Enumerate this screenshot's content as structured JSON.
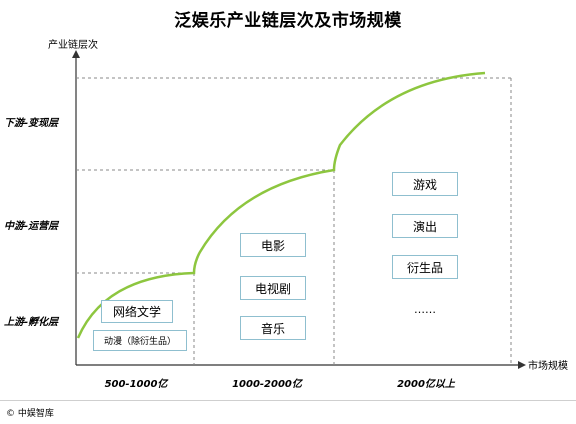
{
  "title": "泛娱乐产业链层次及市场规模",
  "y_axis_label": "产业链层次",
  "x_axis_label": "市场规模",
  "tiers": [
    "下游-变现层",
    "中游-运营层",
    "上游-孵化层"
  ],
  "scale_ranges": [
    "500-1000亿",
    "1000-2000亿",
    "2000亿以上"
  ],
  "segments": {
    "seg1": [
      "网络文学",
      "动漫（除衍生品）"
    ],
    "seg2": [
      "电影",
      "电视剧",
      "音乐"
    ],
    "seg3": [
      "游戏",
      "演出",
      "衍生品",
      "……"
    ]
  },
  "copyright": "© 中娱智库",
  "colors": {
    "curve": "#8dc63f",
    "box_border": "#8fbfcf",
    "dashed": "#888888"
  }
}
